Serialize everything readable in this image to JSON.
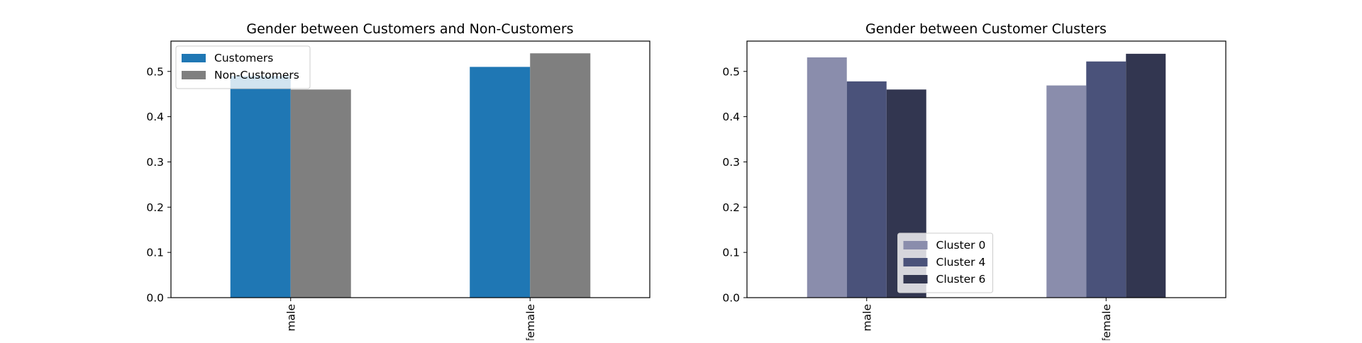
{
  "chart_data": [
    {
      "type": "bar",
      "title": "Gender between Customers and Non-Customers",
      "categories": [
        "male",
        "female"
      ],
      "series": [
        {
          "name": "Customers",
          "values": [
            0.49,
            0.51
          ],
          "color": "#1f77b4"
        },
        {
          "name": "Non-Customers",
          "values": [
            0.46,
            0.54
          ],
          "color": "#7f7f7f"
        }
      ],
      "yticks": [
        "0.0",
        "0.1",
        "0.2",
        "0.3",
        "0.4",
        "0.5"
      ],
      "ylim": [
        0,
        0.567
      ],
      "xlabel": "",
      "ylabel": "",
      "legend_position": "upper-left",
      "grid": false
    },
    {
      "type": "bar",
      "title": "Gender between Customer Clusters",
      "categories": [
        "male",
        "female"
      ],
      "series": [
        {
          "name": "Cluster 0",
          "values": [
            0.531,
            0.469
          ],
          "color": "#8a8dac"
        },
        {
          "name": "Cluster 4",
          "values": [
            0.478,
            0.522
          ],
          "color": "#4a527a"
        },
        {
          "name": "Cluster 6",
          "values": [
            0.46,
            0.539
          ],
          "color": "#323650"
        }
      ],
      "yticks": [
        "0.0",
        "0.1",
        "0.2",
        "0.3",
        "0.4",
        "0.5"
      ],
      "ylim": [
        0,
        0.567
      ],
      "xlabel": "",
      "ylabel": "",
      "legend_position": "lower-center",
      "grid": false
    }
  ]
}
